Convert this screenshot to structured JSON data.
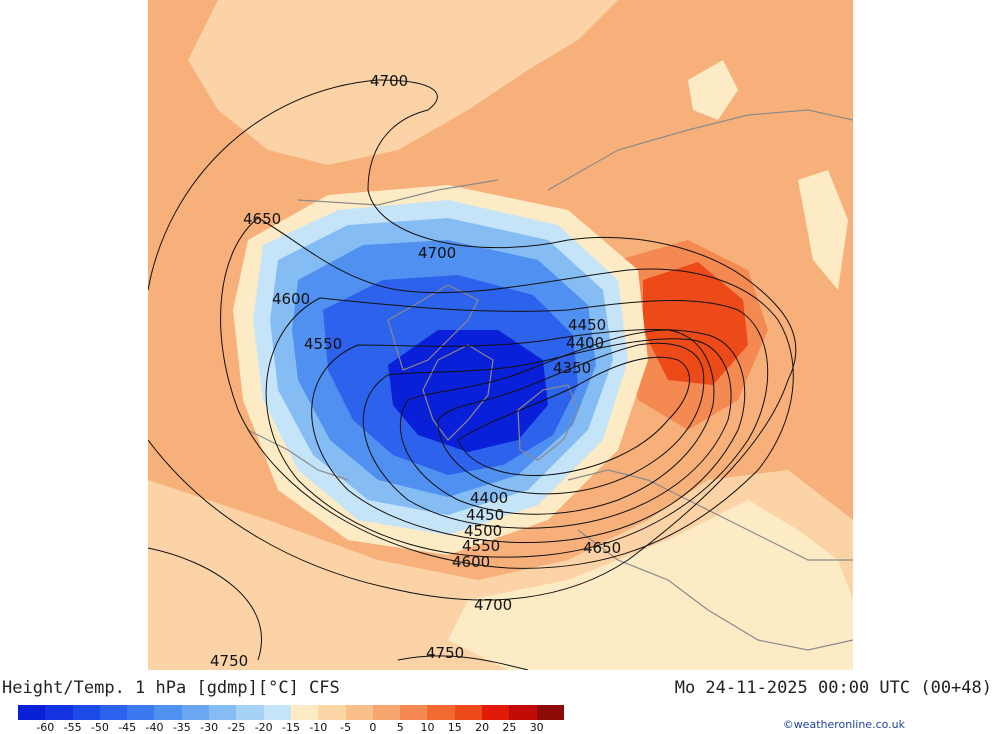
{
  "header": {
    "title": "Height/Temp. 1 hPa [gdmp][°C] CFS",
    "datetime": "Mo 24-11-2025 00:00 UTC (00+48)"
  },
  "legend": {
    "ticks": [
      "-60",
      "-55",
      "-50",
      "-45",
      "-40",
      "-35",
      "-30",
      "-25",
      "-20",
      "-15",
      "-10",
      "-5",
      "0",
      "5",
      "10",
      "15",
      "20",
      "25",
      "30"
    ],
    "colors": [
      "#0a1fd8",
      "#1434e2",
      "#1e4ae8",
      "#2c62ec",
      "#3c78ee",
      "#5090f0",
      "#6aa6f2",
      "#86bcf4",
      "#a6d2f6",
      "#c6e4f8",
      "#fdebc6",
      "#fbd6a6",
      "#f9c08a",
      "#f7a670",
      "#f48a52",
      "#f06a32",
      "#ec4a18",
      "#e21a08",
      "#c20a06",
      "#8e0a06"
    ]
  },
  "map": {
    "colors": {
      "background": "#f7b07a",
      "warm_light": "#fbd3a6",
      "cream": "#fdebc6",
      "warm_strong": "#f06a32",
      "hot": "#ec4a18",
      "cold_light": "#c6e4f8",
      "cold_1": "#86bcf4",
      "cold_2": "#5090f0",
      "cold_3": "#2c62ec",
      "cold_4": "#0a1fd8",
      "contour": "#111111",
      "coast": "#8a8a8a"
    },
    "contour_labels": {
      "c4700_top": "4700",
      "c4650_left": "4650",
      "c4700_mid": "4700",
      "c4600_left": "4600",
      "c4550_left": "4550",
      "c4450_right": "4450",
      "c4400_right": "4400",
      "c4350_right": "4350",
      "c4400_bottom": "4400",
      "c4450_bottom": "4450",
      "c4500_bottom": "4500",
      "c4550_bottom": "4550",
      "c4600_bottom": "4600",
      "c4650_bottom": "4650",
      "c4700_bottom": "4700",
      "c4750_bl": "4750",
      "c4750_bc": "4750"
    }
  },
  "credit": "©weatheronline.co.uk"
}
